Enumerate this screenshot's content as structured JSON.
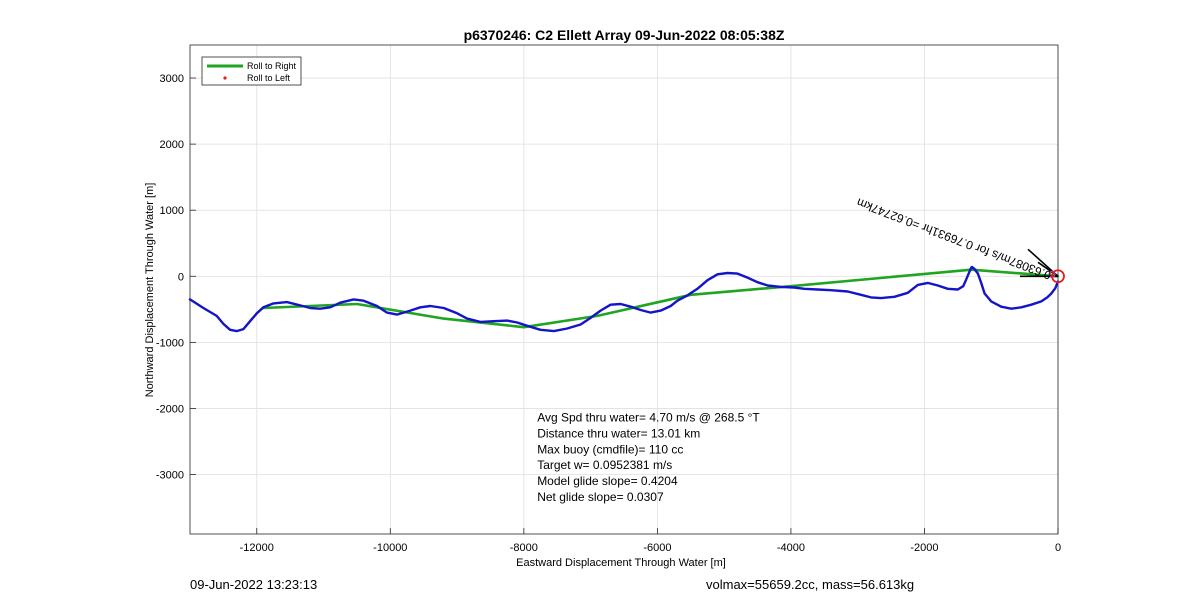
{
  "chart_data": {
    "type": "line",
    "title": "p6370246: C2 Ellett Array 09-Jun-2022 08:05:38Z",
    "xlabel": "Eastward Displacement Through Water [m]",
    "ylabel": "Northward Displacement Through Water [m]",
    "xlim": [
      -13000,
      0
    ],
    "ylim": [
      -3900,
      3500
    ],
    "xticks": [
      -12000,
      -10000,
      -8000,
      -6000,
      -4000,
      -2000,
      0
    ],
    "yticks": [
      3000,
      2000,
      1000,
      0,
      -1000,
      -2000,
      -3000
    ],
    "grid": true,
    "legend_position": "top-left",
    "legend": [
      {
        "label": "Roll to Right",
        "color": "#1fa51f",
        "marker": "line"
      },
      {
        "label": "Roll to Left",
        "color": "#e0201a",
        "marker": "dot"
      }
    ],
    "series": [
      {
        "name": "Roll to Right",
        "color": "#1fa51f",
        "x": [
          0,
          -1300,
          -4000,
          -5500,
          -6900,
          -8000,
          -9200,
          -10500,
          -11900
        ],
        "y": [
          0,
          100,
          -150,
          -280,
          -600,
          -770,
          -640,
          -420,
          -480
        ]
      },
      {
        "color": "#1414c8",
        "x": [
          0,
          -40,
          -100,
          -160,
          -250,
          -400,
          -550,
          -700,
          -850,
          -1000,
          -1100,
          -1150,
          -1200,
          -1250,
          -1290,
          -1300,
          -1330,
          -1380,
          -1420,
          -1500,
          -1650,
          -1800,
          -1950,
          -2100,
          -2250,
          -2450,
          -2650,
          -2800,
          -2950,
          -3150,
          -3400,
          -3600,
          -3800,
          -3950,
          -4150,
          -4350,
          -4500,
          -4650,
          -4800,
          -4950,
          -5100,
          -5250,
          -5400,
          -5550,
          -5700,
          -5800,
          -5950,
          -6100,
          -6250,
          -6400,
          -6550,
          -6700,
          -6850,
          -7000,
          -7150,
          -7350,
          -7550,
          -7750,
          -7950,
          -8100,
          -8250,
          -8450,
          -8650,
          -8850,
          -9000,
          -9200,
          -9400,
          -9550,
          -9700,
          -9900,
          -10050,
          -10200,
          -10400,
          -10550,
          -10750,
          -10900,
          -11050,
          -11200,
          -11350,
          -11550,
          -11750,
          -11900,
          -12000,
          -12100,
          -12200,
          -12300,
          -12400,
          -12500,
          -12600,
          -12800,
          -13000
        ],
        "y": [
          -80,
          -180,
          -260,
          -320,
          -380,
          -430,
          -470,
          -490,
          -460,
          -380,
          -260,
          -100,
          40,
          110,
          140,
          130,
          60,
          -60,
          -150,
          -200,
          -190,
          -140,
          -100,
          -130,
          -250,
          -310,
          -330,
          -320,
          -280,
          -230,
          -210,
          -200,
          -190,
          -170,
          -160,
          -140,
          -90,
          -20,
          40,
          50,
          30,
          -60,
          -190,
          -290,
          -370,
          -450,
          -520,
          -550,
          -510,
          -460,
          -420,
          -430,
          -520,
          -630,
          -730,
          -790,
          -830,
          -810,
          -750,
          -700,
          -670,
          -680,
          -690,
          -640,
          -560,
          -480,
          -450,
          -470,
          -520,
          -580,
          -550,
          -450,
          -370,
          -350,
          -400,
          -470,
          -490,
          -480,
          -440,
          -390,
          -410,
          -470,
          -560,
          -680,
          -800,
          -830,
          -810,
          -720,
          -600,
          -480,
          -350
        ]
      }
    ],
    "annotations": [
      {
        "text": "Avg Spd thru water=  4.70 m/s @ 268.5 °T",
        "x": -7800,
        "y": -2200
      },
      {
        "text": "Distance thru water= 13.01 km",
        "x": -7800,
        "y": -2440
      },
      {
        "text": "Max buoy (cmdfile)= 110 cc",
        "x": -7800,
        "y": -2680
      },
      {
        "text": "Target w= 0.0952381 m/s",
        "x": -7800,
        "y": -2920
      },
      {
        "text": "Model glide slope= 0.4204",
        "x": -7800,
        "y": -3160
      },
      {
        "text": "Net glide slope= 0.0307",
        "x": -7800,
        "y": -3400
      }
    ],
    "rotated_label": {
      "text": "0.63087m/s for 0.76931hr =0.62747km",
      "x": 0,
      "y": 0,
      "angle": 201
    },
    "end_marker": {
      "x": 0,
      "y": 0,
      "color": "#e0201a"
    }
  },
  "footer": {
    "timestamp": "09-Jun-2022 13:23:13",
    "volume_mass": "volmax=55659.2cc, mass=56.613kg"
  }
}
